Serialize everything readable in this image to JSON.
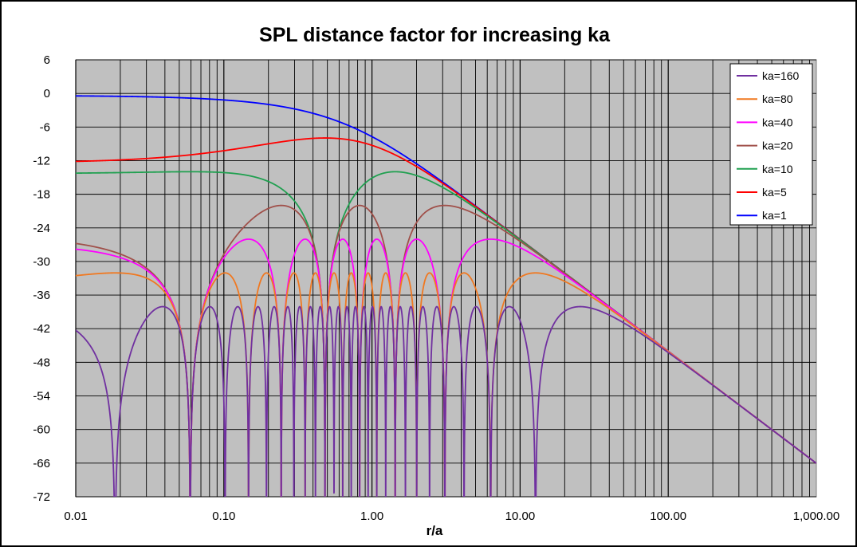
{
  "chart_data": {
    "type": "line",
    "title": "SPL distance factor for increasing ka",
    "xlabel": "r/a",
    "ylabel": "",
    "x_scale": "log",
    "xlim": [
      0.01,
      1000
    ],
    "ylim": [
      -72,
      6
    ],
    "x_tick_values": [
      0.01,
      0.1,
      1,
      10,
      100,
      1000
    ],
    "x_tick_labels": [
      "0.01",
      "0.10",
      "1.00",
      "10.00",
      "100.00",
      "1,000.00"
    ],
    "y_tick_values": [
      6,
      0,
      -6,
      -12,
      -18,
      -24,
      -30,
      -36,
      -42,
      -48,
      -54,
      -60,
      -66,
      -72
    ],
    "y_tick_labels": [
      "6",
      "0",
      "-6",
      "-12",
      "-18",
      "-24",
      "-30",
      "-36",
      "-42",
      "-48",
      "-54",
      "-60",
      "-66",
      "-72"
    ],
    "grid": true,
    "legend_position": "top-right",
    "background": "#c0c0c0",
    "series": [
      {
        "name": "ka=160",
        "color": "#7030a0",
        "ka": 160
      },
      {
        "name": "ka=80",
        "color": "#f07820",
        "ka": 80
      },
      {
        "name": "ka=40",
        "color": "#ff00ff",
        "ka": 40
      },
      {
        "name": "ka=20",
        "color": "#a0504a",
        "ka": 20
      },
      {
        "name": "ka=10",
        "color": "#20a050",
        "ka": 10
      },
      {
        "name": "ka=5",
        "color": "#ff0000",
        "ka": 5
      },
      {
        "name": "ka=1",
        "color": "#0000ff",
        "ka": 1
      }
    ]
  }
}
